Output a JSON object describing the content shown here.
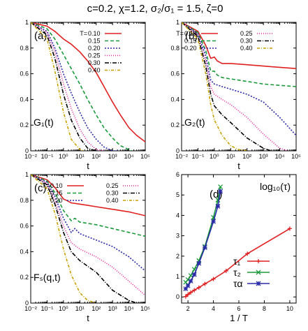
{
  "figure": {
    "title": "c=0.2, χ=1.2, σ₂/σ₁ = 1.5, ζ=0"
  },
  "chart_data": [
    {
      "type": "line",
      "panel_label": "(a)",
      "function_label": "G₁(t)",
      "xlabel": "t",
      "ylabel": "",
      "xscale": "log",
      "xlim": [
        0.01,
        100000
      ],
      "ylim": [
        0,
        1
      ],
      "x_ticks": [
        "10⁻²",
        "10⁻¹",
        "10⁰",
        "10¹",
        "10²",
        "10³",
        "10⁴",
        "10⁵"
      ],
      "y_ticks": [
        "0",
        "0.2",
        "0.4",
        "0.6",
        "0.8",
        "1"
      ],
      "legend": {
        "placement": "top-right",
        "title": "T="
      },
      "series": [
        {
          "name": "0.10",
          "color": "#e02020",
          "dash": "",
          "x": [
            0.01,
            0.1,
            0.3,
            1,
            3,
            10,
            30,
            100,
            300,
            1000,
            3000,
            10000,
            30000,
            100000
          ],
          "values": [
            1.0,
            0.97,
            0.93,
            0.87,
            0.83,
            0.77,
            0.7,
            0.61,
            0.5,
            0.38,
            0.28,
            0.18,
            0.12,
            0.07
          ]
        },
        {
          "name": "0.15",
          "color": "#1a9a3a",
          "dash": "5,3",
          "x": [
            0.01,
            0.1,
            0.3,
            1,
            3,
            10,
            30,
            100,
            300,
            1000,
            3000,
            10000,
            15000
          ],
          "values": [
            1.0,
            0.95,
            0.87,
            0.75,
            0.64,
            0.52,
            0.4,
            0.28,
            0.18,
            0.1,
            0.04,
            0.01,
            0.0
          ]
        },
        {
          "name": "0.20",
          "color": "#2a2aa8",
          "dash": "2,2",
          "x": [
            0.01,
            0.1,
            0.3,
            1,
            3,
            10,
            30,
            100,
            300,
            1000,
            2000
          ],
          "values": [
            1.0,
            0.93,
            0.8,
            0.6,
            0.45,
            0.3,
            0.18,
            0.09,
            0.03,
            0.0,
            0.0
          ]
        },
        {
          "name": "0.25",
          "color": "#e020a0",
          "dash": "1,2",
          "x": [
            0.01,
            0.1,
            0.3,
            1,
            3,
            10,
            30,
            100,
            300
          ],
          "values": [
            1.0,
            0.92,
            0.77,
            0.52,
            0.33,
            0.17,
            0.07,
            0.01,
            0.0
          ]
        },
        {
          "name": "0.30",
          "color": "#000000",
          "dash": "6,2,1,2",
          "x": [
            0.01,
            0.1,
            0.3,
            1,
            3,
            10,
            30,
            100
          ],
          "values": [
            1.0,
            0.9,
            0.72,
            0.44,
            0.24,
            0.1,
            0.02,
            0.0
          ]
        },
        {
          "name": "0.40",
          "color": "#c8a000",
          "dash": "4,2,1,2",
          "x": [
            0.01,
            0.1,
            0.3,
            1,
            3,
            10,
            20
          ],
          "values": [
            1.0,
            0.87,
            0.62,
            0.3,
            0.09,
            0.01,
            0.0
          ]
        }
      ]
    },
    {
      "type": "line",
      "panel_label": "(b)",
      "function_label": "G₂(t)",
      "xlabel": "t",
      "ylabel": "",
      "xscale": "log",
      "xlim": [
        0.01,
        100000
      ],
      "ylim": [
        0,
        1
      ],
      "x_ticks": [
        "10⁻²",
        "10⁻¹",
        "10⁰",
        "10¹",
        "10²",
        "10³",
        "10⁴",
        "10⁵"
      ],
      "y_ticks": [
        "0",
        "0.2",
        "0.4",
        "0.6",
        "0.8",
        "1"
      ],
      "legend": {
        "placement": "top-right",
        "title": "T="
      },
      "series": [
        {
          "name": "0.10",
          "color": "#e02020",
          "dash": "",
          "x": [
            0.01,
            0.1,
            0.3,
            0.6,
            1,
            1.5,
            3,
            10,
            100,
            1000,
            10000,
            100000
          ],
          "values": [
            1.0,
            0.93,
            0.82,
            0.72,
            0.73,
            0.7,
            0.68,
            0.68,
            0.67,
            0.66,
            0.65,
            0.64
          ]
        },
        {
          "name": "0.15",
          "color": "#1a9a3a",
          "dash": "5,3",
          "x": [
            0.01,
            0.1,
            0.3,
            0.6,
            1,
            1.5,
            3,
            10,
            100,
            1000,
            10000,
            100000
          ],
          "values": [
            1.0,
            0.92,
            0.78,
            0.62,
            0.62,
            0.59,
            0.57,
            0.56,
            0.54,
            0.52,
            0.51,
            0.5
          ]
        },
        {
          "name": "0.20",
          "color": "#2a2aa8",
          "dash": "2,2",
          "x": [
            0.01,
            0.1,
            0.3,
            0.6,
            1,
            3,
            10,
            100,
            1000,
            10000,
            100000
          ],
          "values": [
            1.0,
            0.91,
            0.74,
            0.55,
            0.52,
            0.5,
            0.48,
            0.44,
            0.38,
            0.26,
            0.12
          ]
        },
        {
          "name": "0.25",
          "color": "#e020a0",
          "dash": "1,2",
          "x": [
            0.01,
            0.1,
            0.3,
            0.6,
            1,
            3,
            10,
            100,
            1000,
            10000,
            30000
          ],
          "values": [
            1.0,
            0.9,
            0.7,
            0.5,
            0.44,
            0.4,
            0.36,
            0.26,
            0.13,
            0.02,
            0.0
          ]
        },
        {
          "name": "0.30",
          "color": "#000000",
          "dash": "6,2,1,2",
          "x": [
            0.01,
            0.1,
            0.3,
            0.6,
            1,
            3,
            10,
            100,
            1000,
            3000
          ],
          "values": [
            1.0,
            0.89,
            0.66,
            0.44,
            0.35,
            0.28,
            0.22,
            0.1,
            0.02,
            0.0
          ]
        },
        {
          "name": "0.40",
          "color": "#c8a000",
          "dash": "4,2,1,2",
          "x": [
            0.01,
            0.1,
            0.3,
            0.6,
            1,
            3,
            10,
            30,
            100
          ],
          "values": [
            1.0,
            0.87,
            0.6,
            0.36,
            0.24,
            0.12,
            0.04,
            0.01,
            0.0
          ]
        }
      ]
    },
    {
      "type": "line",
      "panel_label": "(c)",
      "function_label": "Fₛ(q,t)",
      "xlabel": "t",
      "ylabel": "",
      "xscale": "log",
      "xlim": [
        0.01,
        100000
      ],
      "ylim": [
        0,
        1
      ],
      "x_ticks": [
        "10⁻²",
        "10⁻¹",
        "10⁰",
        "10¹",
        "10²",
        "10³",
        "10⁴",
        "10⁵"
      ],
      "y_ticks": [
        "0",
        "0.2",
        "0.4",
        "0.6",
        "0.8",
        "1"
      ],
      "legend": {
        "placement": "top-right",
        "title": "T="
      },
      "series": [
        {
          "name": "0.10",
          "color": "#e02020",
          "dash": "",
          "x": [
            0.01,
            0.1,
            0.3,
            1,
            1.5,
            3,
            10,
            100,
            1000,
            10000,
            100000
          ],
          "values": [
            1.0,
            0.96,
            0.9,
            0.81,
            0.8,
            0.78,
            0.77,
            0.75,
            0.73,
            0.71,
            0.68
          ]
        },
        {
          "name": "0.15",
          "color": "#1a9a3a",
          "dash": "5,3",
          "x": [
            0.01,
            0.1,
            0.3,
            1,
            3,
            5,
            10,
            100,
            1000,
            10000,
            100000
          ],
          "values": [
            1.0,
            0.95,
            0.86,
            0.72,
            0.64,
            0.66,
            0.63,
            0.61,
            0.58,
            0.55,
            0.52
          ]
        },
        {
          "name": "0.20",
          "color": "#2a2aa8",
          "dash": "2,2",
          "x": [
            0.01,
            0.1,
            0.3,
            1,
            3,
            5,
            10,
            100,
            1000,
            10000,
            100000
          ],
          "values": [
            1.0,
            0.94,
            0.83,
            0.66,
            0.55,
            0.58,
            0.54,
            0.49,
            0.44,
            0.36,
            0.25
          ]
        },
        {
          "name": "0.25",
          "color": "#e020a0",
          "dash": "1,2",
          "x": [
            0.01,
            0.1,
            0.3,
            1,
            3,
            10,
            100,
            1000,
            10000,
            100000
          ],
          "values": [
            1.0,
            0.93,
            0.8,
            0.6,
            0.47,
            0.42,
            0.36,
            0.28,
            0.17,
            0.06
          ]
        },
        {
          "name": "0.30",
          "color": "#000000",
          "dash": "6,2,1,2",
          "x": [
            0.01,
            0.1,
            0.3,
            1,
            3,
            10,
            100,
            1000,
            10000,
            30000
          ],
          "values": [
            1.0,
            0.92,
            0.77,
            0.55,
            0.4,
            0.33,
            0.24,
            0.1,
            0.02,
            0.0
          ]
        },
        {
          "name": "0.40",
          "color": "#c8a000",
          "dash": "4,2,1,2",
          "x": [
            0.01,
            0.1,
            0.3,
            1,
            3,
            10,
            30,
            100
          ],
          "values": [
            1.0,
            0.89,
            0.7,
            0.42,
            0.22,
            0.08,
            0.02,
            0.0
          ]
        }
      ]
    },
    {
      "type": "line",
      "panel_label": "(d)",
      "function_label": "log₁₀(τ)",
      "xlabel": "1 / T",
      "ylabel": "",
      "xscale": "linear",
      "xlim": [
        1.5,
        10.5
      ],
      "ylim": [
        -0.3,
        6
      ],
      "x_ticks": [
        "2",
        "4",
        "6",
        "8",
        "10"
      ],
      "y_ticks": [
        "0",
        "1",
        "2",
        "3",
        "4",
        "5",
        "6"
      ],
      "legend": {
        "placement": "bottom-right"
      },
      "series": [
        {
          "name": "τ₁",
          "color": "#e02020",
          "marker": "plus",
          "x": [
            1.82,
            2.0,
            2.22,
            2.5,
            2.86,
            3.33,
            4.0,
            5.0,
            6.67,
            10.0
          ],
          "values": [
            0.02,
            0.12,
            0.22,
            0.33,
            0.46,
            0.64,
            0.88,
            1.28,
            2.12,
            3.35
          ]
        },
        {
          "name": "τ₂",
          "color": "#1a9a3a",
          "marker": "cross",
          "x": [
            1.82,
            2.0,
            2.22,
            2.5,
            2.86,
            3.33,
            4.0,
            4.35,
            4.55
          ],
          "values": [
            0.72,
            0.85,
            1.05,
            1.35,
            1.78,
            2.48,
            3.9,
            4.75,
            5.4
          ]
        },
        {
          "name": "τα",
          "color": "#2a2aa8",
          "marker": "star",
          "x": [
            1.82,
            2.0,
            2.22,
            2.5,
            2.86,
            3.33,
            4.0,
            4.35,
            4.55
          ],
          "values": [
            0.4,
            0.55,
            0.78,
            1.1,
            1.65,
            2.42,
            3.7,
            4.45,
            5.18
          ]
        }
      ]
    }
  ]
}
